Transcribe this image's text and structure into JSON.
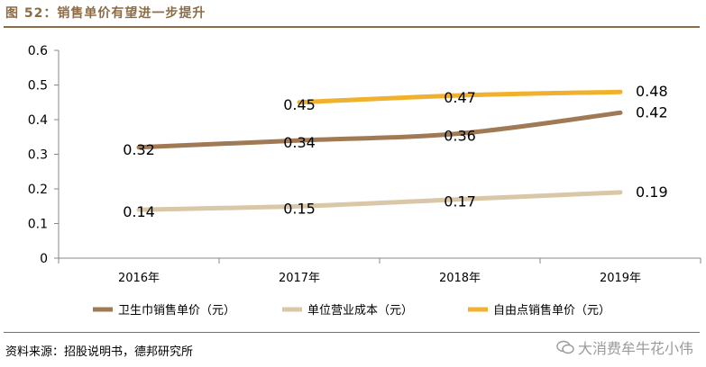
{
  "figure": {
    "title": "图 52：销售单价有望进一步提升",
    "source": "资料来源：招股说明书，德邦研究所",
    "watermark": "大消费牟牛花小伟"
  },
  "chart_data": {
    "type": "line",
    "x": [
      "2016年",
      "2017年",
      "2018年",
      "2019年"
    ],
    "ylim": [
      0,
      0.6
    ],
    "yticks": [
      0,
      0.1,
      0.2,
      0.3,
      0.4,
      0.5,
      0.6
    ],
    "ytick_labels": [
      "0",
      "0.1",
      "0.2",
      "0.3",
      "0.4",
      "0.5",
      "0.6"
    ],
    "grid": false,
    "legend_position": "bottom",
    "series": [
      {
        "name": "卫生巾销售单价（元）",
        "color": "#a07a55",
        "values": [
          0.32,
          0.34,
          0.36,
          0.42
        ],
        "labels": [
          "0.32",
          "0.34",
          "0.36",
          "0.42"
        ]
      },
      {
        "name": "单位营业成本（元）",
        "color": "#d9c7a7",
        "values": [
          0.14,
          0.15,
          0.17,
          0.19
        ],
        "labels": [
          "0.14",
          "0.15",
          "0.17",
          "0.19"
        ]
      },
      {
        "name": "自由点销售单价（元）",
        "color": "#f0b22e",
        "values": [
          null,
          0.45,
          0.47,
          0.48
        ],
        "labels": [
          "",
          "0.45",
          "0.47",
          "0.48"
        ]
      }
    ]
  }
}
